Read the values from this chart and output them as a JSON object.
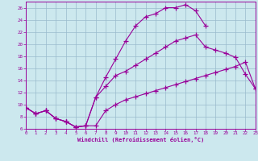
{
  "xlabel": "Windchill (Refroidissement éolien,°C)",
  "bg_color": "#cce8ee",
  "line_color": "#990099",
  "grid_color": "#99bbcc",
  "xlim": [
    0,
    23
  ],
  "ylim": [
    6,
    27
  ],
  "xticks": [
    0,
    1,
    2,
    3,
    4,
    5,
    6,
    7,
    8,
    9,
    10,
    11,
    12,
    13,
    14,
    15,
    16,
    17,
    18,
    19,
    20,
    21,
    22,
    23
  ],
  "yticks": [
    6,
    8,
    10,
    12,
    14,
    16,
    18,
    20,
    22,
    24,
    26
  ],
  "line1_x": [
    0,
    1,
    2,
    3,
    4,
    5,
    6,
    7,
    8,
    9,
    10,
    11,
    12,
    13,
    14,
    15,
    16,
    17,
    18,
    19,
    20,
    21,
    22,
    23
  ],
  "line1_y": [
    9.5,
    8.5,
    9.0,
    7.7,
    7.2,
    6.3,
    6.5,
    6.5,
    9.0,
    10.0,
    10.8,
    11.3,
    11.8,
    12.3,
    12.8,
    13.3,
    13.8,
    14.3,
    14.8,
    15.3,
    15.8,
    16.3,
    17.0,
    12.6
  ],
  "line2_x": [
    0,
    1,
    2,
    3,
    4,
    5,
    6,
    7,
    8,
    9,
    10,
    11,
    12,
    13,
    14,
    15,
    16,
    17,
    18,
    19,
    20,
    21,
    22,
    23
  ],
  "line2_y": [
    9.5,
    8.5,
    9.0,
    7.7,
    7.2,
    6.3,
    6.5,
    11.2,
    13.0,
    14.8,
    15.5,
    16.5,
    17.5,
    18.5,
    19.5,
    20.5,
    21.0,
    21.5,
    19.5,
    19.0,
    18.5,
    17.8,
    15.0,
    12.6
  ],
  "line3_x": [
    0,
    1,
    2,
    3,
    4,
    5,
    6,
    7,
    8,
    9,
    10,
    11,
    12,
    13,
    14,
    15,
    16,
    17,
    18
  ],
  "line3_y": [
    9.5,
    8.5,
    9.0,
    7.7,
    7.2,
    6.3,
    6.5,
    11.2,
    14.5,
    17.5,
    20.5,
    23.0,
    24.5,
    25.0,
    26.0,
    26.0,
    26.5,
    25.5,
    23.0
  ]
}
